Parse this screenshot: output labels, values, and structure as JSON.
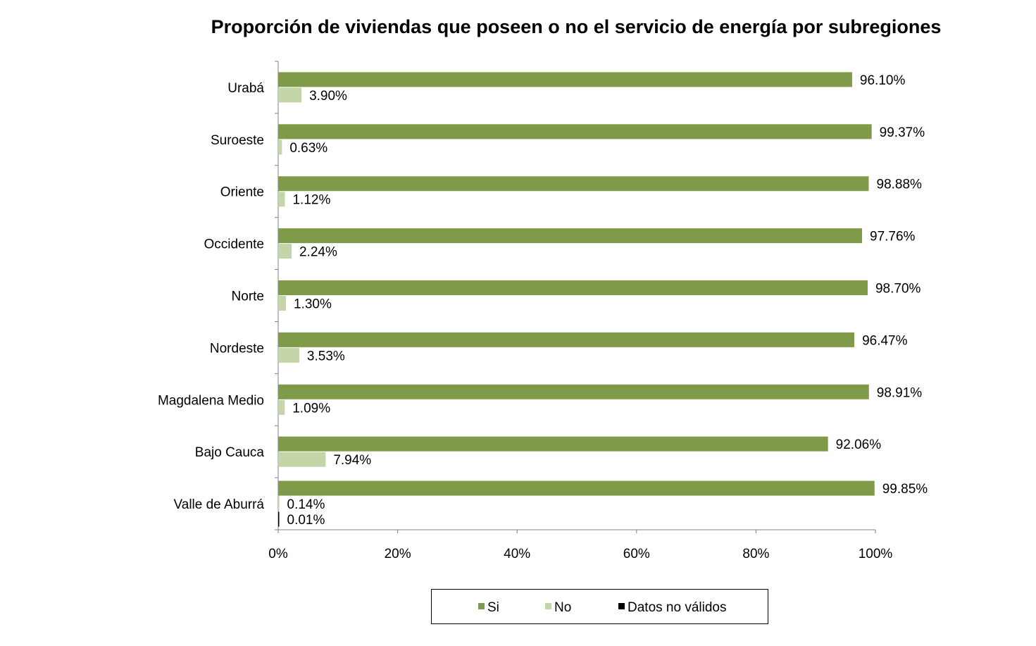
{
  "chart_data": {
    "type": "bar",
    "orientation": "horizontal",
    "title": "Proporción de viviendas que poseen o no el servicio de energía  por subregiones",
    "categories": [
      "Urabá",
      "Suroeste",
      "Oriente",
      "Occidente",
      "Norte",
      "Nordeste",
      "Magdalena Medio",
      "Bajo Cauca",
      "Valle de Aburrá"
    ],
    "series": [
      {
        "name": "Si",
        "color": "#7f9a48",
        "values": [
          96.1,
          99.37,
          98.88,
          97.76,
          98.7,
          96.47,
          98.91,
          92.06,
          99.85
        ],
        "labels": [
          "96.10%",
          "99.37%",
          "98.88%",
          "97.76%",
          "98.70%",
          "96.47%",
          "98.91%",
          "92.06%",
          "99.85%"
        ]
      },
      {
        "name": "No",
        "color": "#c4d5a8",
        "values": [
          3.9,
          0.63,
          1.12,
          2.24,
          1.3,
          3.53,
          1.09,
          7.94,
          0.14
        ],
        "labels": [
          "3.90%",
          "0.63%",
          "1.12%",
          "2.24%",
          "1.30%",
          "3.53%",
          "1.09%",
          "7.94%",
          "0.14%"
        ]
      },
      {
        "name": "Datos no válidos",
        "color": "#000000",
        "values": [
          null,
          null,
          null,
          null,
          null,
          null,
          null,
          null,
          0.01
        ],
        "labels": [
          "",
          "",
          "",
          "",
          "",
          "",
          "",
          "",
          "0.01%"
        ]
      }
    ],
    "x_ticks": [
      "0%",
      "20%",
      "40%",
      "60%",
      "80%",
      "100%"
    ],
    "xlim": [
      0,
      100
    ],
    "grid": false,
    "legend_position": "bottom"
  }
}
